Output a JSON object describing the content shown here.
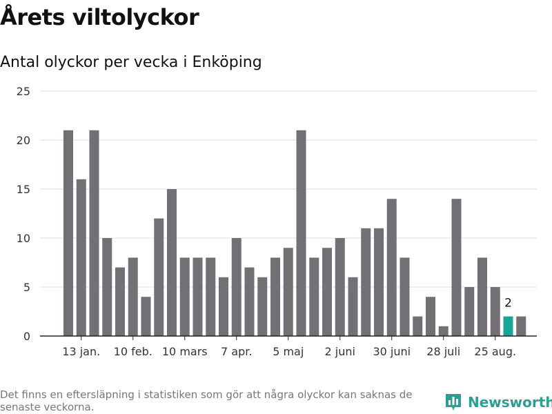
{
  "title": "Årets viltolyckor",
  "subtitle": "Antal olyckor per vecka i Enköping",
  "note": "Det finns en eftersläpning i statistiken som gör att några olyckor kan saknas de senaste veckorna.",
  "brand": {
    "name": "Newsworthy",
    "icon": "bar-chart-logo-icon"
  },
  "colors": {
    "bar": "#727075",
    "highlight": "#19a69a",
    "grid": "#dddddd",
    "axis": "#222222"
  },
  "chart_data": {
    "type": "bar",
    "x_tick_labels": [
      "13 jan.",
      "10 feb.",
      "10 mars",
      "7 apr.",
      "5 maj",
      "2 juni",
      "30 juni",
      "28 juli",
      "25 aug."
    ],
    "x_tick_bar_index": [
      1,
      5,
      9,
      13,
      17,
      21,
      25,
      29,
      33
    ],
    "values": [
      21,
      16,
      21,
      10,
      7,
      8,
      4,
      12,
      15,
      8,
      8,
      8,
      6,
      10,
      7,
      6,
      8,
      9,
      21,
      8,
      9,
      10,
      6,
      11,
      11,
      14,
      8,
      2,
      4,
      1,
      14,
      5,
      8,
      5,
      2
    ],
    "highlight_index": 34,
    "highlight_label": "2",
    "ylim": [
      0,
      25
    ],
    "yticks": [
      0,
      5,
      10,
      15,
      20,
      25
    ],
    "grid": true
  }
}
